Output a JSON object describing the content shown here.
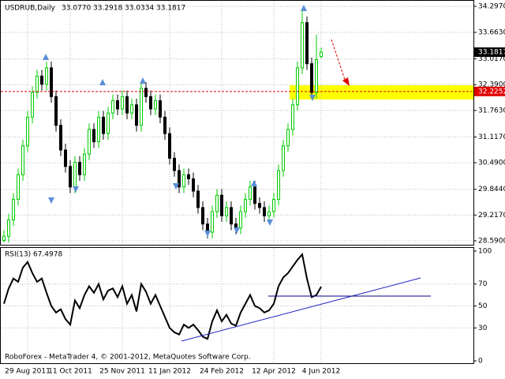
{
  "chart_data": {
    "type": "candlestick",
    "title": "USDRUB,Daily",
    "ohlc_labels": [
      "33.0770",
      "33.2918",
      "33.0334",
      "33.1817"
    ],
    "footer": "RoboForex - MetaTrader 4, © 2001-2012, MetaQuotes Software Corp.",
    "categories": [
      null,
      null,
      null,
      null,
      null,
      "29 Aug 2011",
      null,
      null,
      null,
      null,
      null,
      null,
      null,
      null,
      "11 Oct 2011",
      null,
      null,
      null,
      null,
      null,
      null,
      null,
      null,
      null,
      null,
      "25 Nov 2011",
      null,
      null,
      null,
      null,
      null,
      null,
      null,
      null,
      null,
      "11 Jan 2012",
      null,
      null,
      null,
      null,
      null,
      null,
      null,
      null,
      null,
      null,
      "24 Feb 2012",
      null,
      null,
      null,
      null,
      null,
      null,
      null,
      null,
      null,
      null,
      "12 Apr 2012",
      null,
      null,
      null,
      null,
      null,
      null,
      null,
      null,
      null,
      "4 Jun 2012"
    ],
    "open": [
      28.6,
      28.7,
      29.1,
      29.6,
      30.2,
      30.9,
      31.6,
      32.2,
      32.6,
      32.4,
      32.8,
      32.1,
      31.4,
      30.8,
      30.4,
      29.9,
      30.5,
      30.2,
      30.7,
      31.3,
      31.0,
      31.6,
      31.2,
      31.7,
      32.0,
      31.8,
      32.1,
      31.7,
      31.9,
      31.4,
      32.3,
      32.1,
      31.8,
      32.0,
      31.6,
      31.2,
      30.6,
      30.3,
      29.9,
      30.2,
      30.1,
      29.8,
      29.4,
      29.0,
      28.8,
      29.3,
      29.7,
      29.2,
      29.4,
      29.0,
      28.9,
      29.3,
      29.6,
      29.9,
      29.5,
      29.4,
      29.2,
      29.3,
      29.6,
      30.3,
      30.9,
      31.3,
      31.9,
      32.8,
      33.9,
      32.9,
      32.2,
      33.077
    ],
    "high": [
      28.85,
      29.25,
      29.75,
      30.35,
      31.05,
      31.75,
      32.35,
      32.75,
      32.75,
      32.95,
      32.95,
      32.25,
      31.55,
      30.95,
      30.55,
      30.65,
      30.65,
      30.85,
      31.45,
      31.45,
      31.75,
      31.75,
      31.85,
      32.15,
      32.15,
      32.25,
      32.25,
      32.05,
      32.05,
      32.45,
      32.45,
      32.25,
      32.15,
      32.15,
      31.75,
      31.35,
      30.75,
      30.45,
      30.35,
      30.35,
      30.25,
      29.95,
      29.55,
      29.15,
      29.45,
      29.85,
      29.85,
      29.55,
      29.55,
      29.15,
      29.45,
      29.75,
      30.05,
      30.05,
      29.65,
      29.55,
      29.45,
      29.75,
      30.45,
      31.05,
      31.45,
      32.05,
      32.95,
      34.2,
      34.05,
      33.05,
      33.6,
      33.2918
    ],
    "low": [
      28.55,
      28.55,
      28.95,
      29.45,
      30.05,
      30.75,
      31.45,
      32.05,
      32.25,
      32.25,
      31.95,
      31.25,
      30.65,
      30.25,
      29.75,
      29.75,
      30.05,
      30.05,
      30.55,
      30.85,
      30.85,
      31.05,
      31.05,
      31.55,
      31.65,
      31.65,
      31.55,
      31.55,
      31.25,
      31.25,
      31.95,
      31.65,
      31.65,
      31.45,
      31.05,
      30.45,
      30.15,
      29.75,
      29.75,
      29.95,
      29.65,
      29.25,
      28.85,
      28.65,
      28.65,
      29.15,
      29.05,
      29.05,
      28.85,
      28.75,
      28.75,
      29.15,
      29.45,
      29.35,
      29.25,
      29.05,
      29.05,
      29.15,
      29.45,
      30.15,
      30.75,
      31.15,
      31.75,
      32.65,
      32.75,
      32.05,
      32.05,
      33.0334
    ],
    "close": [
      28.7,
      29.1,
      29.6,
      30.2,
      30.9,
      31.6,
      32.2,
      32.6,
      32.4,
      32.8,
      32.1,
      31.4,
      30.8,
      30.4,
      29.9,
      30.5,
      30.2,
      30.7,
      31.3,
      31.0,
      31.6,
      31.2,
      31.7,
      32.0,
      31.8,
      32.1,
      31.7,
      31.9,
      31.4,
      32.3,
      32.1,
      31.8,
      32.0,
      31.6,
      31.2,
      30.6,
      30.3,
      29.9,
      30.2,
      30.1,
      29.8,
      29.4,
      29.0,
      28.8,
      29.3,
      29.7,
      29.2,
      29.4,
      29.0,
      28.9,
      29.3,
      29.6,
      29.9,
      29.5,
      29.4,
      29.2,
      29.3,
      29.6,
      30.3,
      30.9,
      31.3,
      31.9,
      32.8,
      33.9,
      32.9,
      32.2,
      33.0,
      33.1817
    ],
    "up_color": "#00cc00",
    "down_color": "#000000",
    "grid": true,
    "ylim": [
      28.59,
      34.297
    ],
    "yticks": [
      {
        "value": 34.297,
        "label": "34.2970"
      },
      {
        "value": 33.663,
        "label": "33.6630"
      },
      {
        "value": 33.017,
        "label": "33.0170"
      },
      {
        "value": 32.39,
        "label": "32.3900"
      },
      {
        "value": 31.763,
        "label": "31.7630"
      },
      {
        "value": 31.117,
        "label": "31.1170"
      },
      {
        "value": 30.49,
        "label": "30.4900"
      },
      {
        "value": 29.844,
        "label": "29.8440"
      },
      {
        "value": 29.217,
        "label": "29.2170"
      },
      {
        "value": 28.59,
        "label": "28.5900"
      }
    ],
    "price_markers": [
      {
        "value": 33.1817,
        "label": "33.1817",
        "color": "#000000"
      },
      {
        "value": 32.2252,
        "label": "32.2252",
        "color": "#e00000"
      }
    ],
    "indicator": {
      "type": "line",
      "title": "RSI(13) 67.4978",
      "color": "#000000",
      "values": [
        52,
        66,
        75,
        72,
        85,
        90,
        80,
        72,
        75,
        62,
        50,
        44,
        47,
        38,
        33,
        55,
        48,
        60,
        68,
        62,
        70,
        56,
        64,
        66,
        58,
        68,
        52,
        60,
        45,
        70,
        63,
        52,
        60,
        50,
        40,
        30,
        26,
        24,
        33,
        30,
        33,
        28,
        22,
        20,
        36,
        46,
        36,
        42,
        34,
        32,
        44,
        52,
        60,
        50,
        48,
        44,
        46,
        52,
        68,
        76,
        80,
        86,
        92,
        97,
        75,
        58,
        60,
        67.4978
      ],
      "ylim": [
        0,
        100
      ],
      "yticks": [
        100,
        70,
        50,
        30,
        0
      ]
    }
  }
}
